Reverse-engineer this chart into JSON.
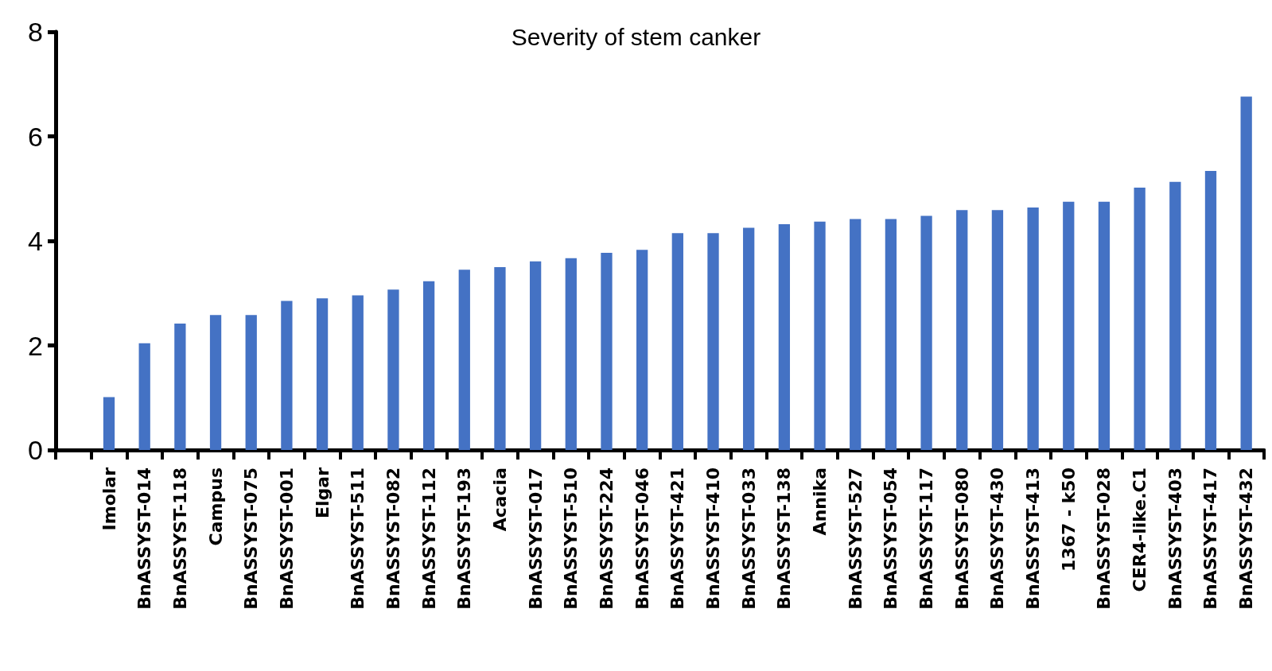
{
  "chart_data": {
    "type": "bar",
    "title": "Severity of stem canker",
    "categories": [
      null,
      "Imolar",
      "BnASSYST-014",
      "BnASSYST-118",
      "Campus",
      "BnASSYST-075",
      "BnASSYST-001",
      "Elgar",
      "BnASSYST-511",
      "BnASSYST-082",
      "BnASSYST-112",
      "BnASSYST-193",
      "Acacia",
      "BnASSYST-017",
      "BnASSYST-510",
      "BnASSYST-224",
      "BnASSYST-046",
      "BnASSYST-421",
      "BnASSYST-410",
      "BnASSYST-033",
      "BnASSYST-138",
      "Annika",
      "BnASSYST-527",
      "BnASSYST-054",
      "BnASSYST-117",
      "BnASSYST-080",
      "BnASSYST-430",
      "BnASSYST-413",
      "1367 - k50",
      "BnASSYST-028",
      "CER4-like.C1",
      "BnASSYST-403",
      "BnASSYST-417",
      "BnASSYST-432"
    ],
    "values": [
      null,
      1.01,
      2.04,
      2.42,
      2.58,
      2.58,
      2.85,
      2.9,
      2.96,
      3.07,
      3.23,
      3.45,
      3.5,
      3.61,
      3.67,
      3.77,
      3.83,
      4.15,
      4.15,
      4.25,
      4.32,
      4.37,
      4.42,
      4.42,
      4.48,
      4.59,
      4.59,
      4.64,
      4.75,
      4.75,
      5.02,
      5.13,
      5.34,
      6.76
    ],
    "color": "#4472c4",
    "ylim": [
      0,
      8
    ],
    "yticks": [
      0,
      2,
      4,
      6,
      8
    ],
    "grid": false
  }
}
